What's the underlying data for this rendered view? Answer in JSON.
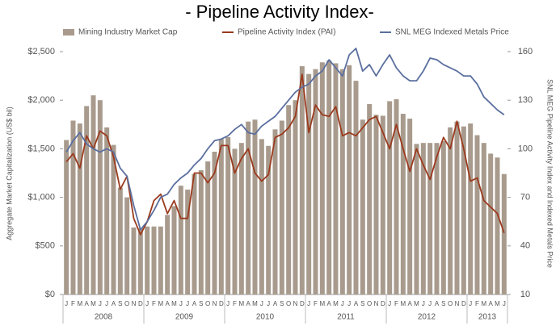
{
  "chart_data": {
    "type": "bar_line",
    "title": "- Pipeline Activity Index-",
    "y_label": "Aggregate Market Capitalization (US$ bil)",
    "y2_label": "SNL MEG Pipeline Activity Index and Indexed Metals Price",
    "categories": [
      "J",
      "F",
      "M",
      "A",
      "M",
      "J",
      "J",
      "A",
      "S",
      "O",
      "N",
      "D",
      "J",
      "F",
      "M",
      "A",
      "M",
      "J",
      "J",
      "A",
      "S",
      "O",
      "N",
      "D",
      "J",
      "F",
      "M",
      "A",
      "M",
      "J",
      "J",
      "A",
      "S",
      "O",
      "N",
      "D",
      "J",
      "F",
      "M",
      "A",
      "M",
      "J",
      "J",
      "A",
      "S",
      "O",
      "N",
      "D",
      "J",
      "F",
      "M",
      "A",
      "M",
      "J",
      "J",
      "A",
      "S",
      "O",
      "N",
      "D",
      "J",
      "F",
      "M",
      "A",
      "M",
      "J"
    ],
    "x_groups": [
      "2008",
      "2009",
      "2010",
      "2011",
      "2012",
      "2013"
    ],
    "ylim": [
      0,
      2500
    ],
    "yticks": [
      {
        "value": 0,
        "label": "$0"
      },
      {
        "value": 500,
        "label": "$500"
      },
      {
        "value": 1000,
        "label": "$1,000"
      },
      {
        "value": 1500,
        "label": "$1,500"
      },
      {
        "value": 2000,
        "label": "$2,000"
      },
      {
        "value": 2500,
        "label": "$2,500"
      }
    ],
    "y2lim": [
      10,
      160
    ],
    "y2ticks": [
      10,
      40,
      70,
      100,
      130,
      160
    ],
    "legend": "top",
    "series": [
      {
        "name": "Mining Industry Market Cap",
        "type": "bar",
        "axis": "y",
        "color": "#a89b8d",
        "values": [
          1590,
          1790,
          1760,
          1940,
          2050,
          2000,
          1720,
          1540,
          1100,
          1000,
          690,
          680,
          700,
          700,
          700,
          820,
          910,
          1120,
          1080,
          1240,
          1280,
          1370,
          1470,
          1600,
          1620,
          1500,
          1560,
          1780,
          1800,
          1600,
          1530,
          1700,
          1790,
          1950,
          2000,
          2350,
          2270,
          2320,
          2390,
          2410,
          2380,
          2320,
          2360,
          2200,
          1800,
          1960,
          1850,
          1840,
          1990,
          2010,
          1860,
          1810,
          1550,
          1560,
          1560,
          1560,
          1580,
          1720,
          1780,
          1730,
          1760,
          1640,
          1560,
          1450,
          1410,
          1240
        ]
      },
      {
        "name": "Pipeline Activity Index (PAI)",
        "type": "line",
        "axis": "y2",
        "color": "#9b3a1e",
        "values": [
          92,
          97,
          88,
          108,
          100,
          111,
          108,
          95,
          75,
          83,
          57,
          47,
          55,
          68,
          72,
          60,
          68,
          57,
          57,
          85,
          85,
          79,
          85,
          102,
          102,
          85,
          94,
          100,
          85,
          80,
          84,
          107,
          109,
          113,
          120,
          146,
          110,
          127,
          121,
          120,
          126,
          108,
          110,
          108,
          113,
          118,
          120,
          110,
          100,
          115,
          100,
          86,
          100,
          90,
          81,
          95,
          107,
          100,
          117,
          100,
          80,
          82,
          68,
          64,
          60,
          48
        ]
      },
      {
        "name": "SNL MEG Indexed Metals Price",
        "type": "line",
        "axis": "y2",
        "color": "#5b6f9f",
        "values": [
          98,
          105,
          110,
          103,
          100,
          98,
          100,
          98,
          88,
          83,
          65,
          50,
          55,
          62,
          70,
          72,
          78,
          82,
          85,
          90,
          94,
          100,
          105,
          106,
          108,
          112,
          115,
          110,
          109,
          114,
          117,
          120,
          125,
          130,
          135,
          138,
          140,
          145,
          148,
          155,
          150,
          145,
          158,
          162,
          148,
          152,
          145,
          152,
          158,
          150,
          145,
          142,
          142,
          148,
          156,
          155,
          152,
          150,
          148,
          145,
          145,
          140,
          132,
          128,
          124,
          121
        ]
      }
    ]
  }
}
